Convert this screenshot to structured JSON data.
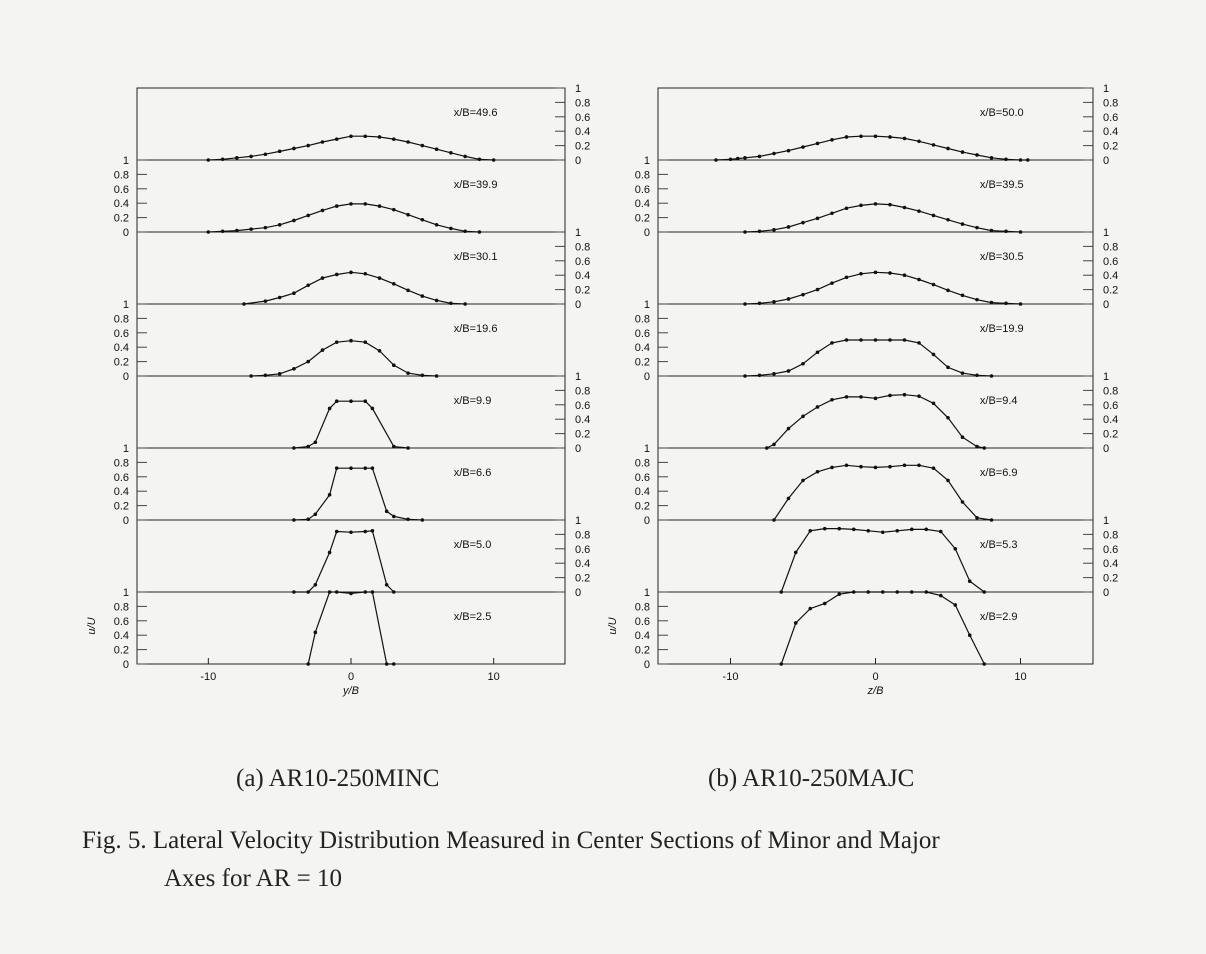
{
  "figure": {
    "caption_line1": "Fig. 5. Lateral Velocity Distribution Measured in Center Sections of Minor and Major",
    "caption_line2": "Axes for AR = 10",
    "colors": {
      "background": "#f4f4f2",
      "line": "#111111",
      "text": "#222222"
    }
  },
  "chart_data": [
    {
      "type": "line",
      "title": "(a) AR10-250MINC",
      "xlabel": "y/B",
      "ylabel": "u/U",
      "xlim": [
        -15,
        15
      ],
      "xticks": [
        -10,
        0,
        10
      ],
      "ylim": [
        0,
        1
      ],
      "yticks": [
        "0",
        "0.2",
        "0.4",
        "0.6",
        "0.8",
        "1"
      ],
      "grid": false,
      "series": [
        {
          "name": "x/B=49.6",
          "x": [
            -10,
            -9,
            -8,
            -7,
            -6,
            -5,
            -4,
            -3,
            -2,
            -1,
            0,
            1,
            2,
            3,
            4,
            5,
            6,
            7,
            8,
            9,
            10
          ],
          "y": [
            0.0,
            0.01,
            0.03,
            0.05,
            0.08,
            0.12,
            0.16,
            0.2,
            0.25,
            0.29,
            0.33,
            0.33,
            0.32,
            0.29,
            0.25,
            0.2,
            0.15,
            0.1,
            0.05,
            0.01,
            0.0
          ]
        },
        {
          "name": "x/B=39.9",
          "x": [
            -10,
            -9,
            -8,
            -7,
            -6,
            -5,
            -4,
            -3,
            -2,
            -1,
            0,
            1,
            2,
            3,
            4,
            5,
            6,
            7,
            8,
            9
          ],
          "y": [
            0.0,
            0.01,
            0.02,
            0.04,
            0.06,
            0.1,
            0.16,
            0.23,
            0.3,
            0.36,
            0.39,
            0.39,
            0.36,
            0.31,
            0.24,
            0.17,
            0.1,
            0.05,
            0.01,
            0.0
          ]
        },
        {
          "name": "x/B=30.1",
          "x": [
            -7.5,
            -6,
            -5,
            -4,
            -3,
            -2,
            -1,
            0,
            1,
            2,
            3,
            4,
            5,
            6,
            7,
            8
          ],
          "y": [
            0.0,
            0.04,
            0.09,
            0.15,
            0.26,
            0.36,
            0.41,
            0.44,
            0.42,
            0.36,
            0.28,
            0.19,
            0.11,
            0.05,
            0.01,
            0.0
          ]
        },
        {
          "name": "x/B=19.6",
          "x": [
            -7,
            -6,
            -5,
            -4,
            -3,
            -2,
            -1,
            0,
            1,
            2,
            3,
            4,
            5,
            6
          ],
          "y": [
            0.0,
            0.01,
            0.03,
            0.1,
            0.2,
            0.36,
            0.47,
            0.49,
            0.47,
            0.35,
            0.15,
            0.04,
            0.01,
            0.0
          ]
        },
        {
          "name": "x/B=9.9",
          "x": [
            -4,
            -3,
            -2.5,
            -1.5,
            -1,
            0,
            1,
            1.5,
            3,
            4
          ],
          "y": [
            0.0,
            0.02,
            0.08,
            0.55,
            0.65,
            0.65,
            0.65,
            0.55,
            0.02,
            0.0
          ]
        },
        {
          "name": "x/B=6.6",
          "x": [
            -4,
            -3,
            -2.5,
            -1.5,
            -1,
            0,
            1,
            1.5,
            2.5,
            3,
            4,
            5
          ],
          "y": [
            0.0,
            0.01,
            0.08,
            0.35,
            0.72,
            0.72,
            0.72,
            0.72,
            0.12,
            0.05,
            0.01,
            0.0
          ]
        },
        {
          "name": "x/B=5.0",
          "x": [
            -4,
            -3,
            -2.5,
            -1.5,
            -1,
            0,
            1,
            1.5,
            2.5,
            3
          ],
          "y": [
            0.0,
            0.0,
            0.1,
            0.55,
            0.84,
            0.83,
            0.84,
            0.85,
            0.1,
            0.0
          ]
        },
        {
          "name": "x/B=2.5",
          "x": [
            -3,
            -2.5,
            -1.5,
            -1,
            0,
            1,
            1.5,
            2.5,
            3
          ],
          "y": [
            0.0,
            0.44,
            1.0,
            1.0,
            0.98,
            1.0,
            1.0,
            0.0,
            0.0
          ]
        }
      ]
    },
    {
      "type": "line",
      "title": "(b) AR10-250MAJC",
      "xlabel": "z/B",
      "ylabel": "u/U",
      "xlim": [
        -15,
        15
      ],
      "xticks": [
        -10,
        0,
        10
      ],
      "ylim": [
        0,
        1
      ],
      "yticks": [
        "0",
        "0.2",
        "0.4",
        "0.6",
        "0.8",
        "1"
      ],
      "grid": false,
      "series": [
        {
          "name": "x/B=50.0",
          "x": [
            -11,
            -10,
            -9.5,
            -9,
            -8,
            -7,
            -6,
            -5,
            -4,
            -3,
            -2,
            -1,
            0,
            1,
            2,
            3,
            4,
            5,
            6,
            7,
            8,
            9,
            10,
            10.5
          ],
          "y": [
            0.0,
            0.01,
            0.02,
            0.03,
            0.05,
            0.09,
            0.13,
            0.18,
            0.23,
            0.28,
            0.32,
            0.33,
            0.33,
            0.32,
            0.3,
            0.26,
            0.21,
            0.16,
            0.11,
            0.07,
            0.03,
            0.01,
            0.0,
            0.0
          ]
        },
        {
          "name": "x/B=39.5",
          "x": [
            -9,
            -8,
            -7,
            -6,
            -5,
            -4,
            -3,
            -2,
            -1,
            0,
            1,
            2,
            3,
            4,
            5,
            6,
            7,
            8,
            9,
            10
          ],
          "y": [
            0.0,
            0.01,
            0.03,
            0.07,
            0.13,
            0.19,
            0.26,
            0.33,
            0.37,
            0.39,
            0.38,
            0.34,
            0.29,
            0.23,
            0.17,
            0.11,
            0.06,
            0.02,
            0.01,
            0.0
          ]
        },
        {
          "name": "x/B=30.5",
          "x": [
            -9,
            -8,
            -7,
            -6,
            -5,
            -4,
            -3,
            -2,
            -1,
            0,
            1,
            2,
            3,
            4,
            5,
            6,
            7,
            8,
            9,
            10
          ],
          "y": [
            0.0,
            0.01,
            0.03,
            0.07,
            0.13,
            0.2,
            0.29,
            0.37,
            0.42,
            0.44,
            0.43,
            0.4,
            0.34,
            0.27,
            0.19,
            0.12,
            0.06,
            0.02,
            0.01,
            0.0
          ]
        },
        {
          "name": "x/B=19.9",
          "x": [
            -9,
            -8,
            -7,
            -6,
            -5,
            -4,
            -3,
            -2,
            -1,
            0,
            1,
            2,
            3,
            4,
            5,
            6,
            7,
            8
          ],
          "y": [
            0.0,
            0.01,
            0.03,
            0.07,
            0.17,
            0.33,
            0.46,
            0.5,
            0.5,
            0.5,
            0.5,
            0.5,
            0.46,
            0.3,
            0.12,
            0.04,
            0.01,
            0.0
          ]
        },
        {
          "name": "x/B=9.4",
          "x": [
            -7.5,
            -7,
            -6,
            -5,
            -4,
            -3,
            -2,
            -1,
            0,
            1,
            2,
            3,
            4,
            5,
            6,
            7,
            7.5
          ],
          "y": [
            0.0,
            0.05,
            0.27,
            0.44,
            0.57,
            0.67,
            0.71,
            0.71,
            0.69,
            0.73,
            0.74,
            0.72,
            0.62,
            0.42,
            0.15,
            0.02,
            0.0
          ]
        },
        {
          "name": "x/B=6.9",
          "x": [
            -7,
            -6,
            -5,
            -4,
            -3,
            -2,
            -1,
            0,
            1,
            2,
            3,
            4,
            5,
            6,
            7,
            8
          ],
          "y": [
            0.0,
            0.3,
            0.55,
            0.67,
            0.73,
            0.76,
            0.74,
            0.73,
            0.74,
            0.76,
            0.76,
            0.72,
            0.55,
            0.25,
            0.03,
            0.0
          ]
        },
        {
          "name": "x/B=5.3",
          "x": [
            -6.5,
            -5.5,
            -4.5,
            -3.5,
            -2.5,
            -1.5,
            -0.5,
            0.5,
            1.5,
            2.5,
            3.5,
            4.5,
            5.5,
            6.5,
            7.5
          ],
          "y": [
            0.0,
            0.55,
            0.85,
            0.88,
            0.88,
            0.87,
            0.85,
            0.83,
            0.85,
            0.87,
            0.87,
            0.84,
            0.6,
            0.15,
            0.0
          ]
        },
        {
          "name": "x/B=2.9",
          "x": [
            -6.5,
            -5.5,
            -4.5,
            -3.5,
            -2.5,
            -1.5,
            -0.5,
            0.5,
            1.5,
            2.5,
            3.5,
            4.5,
            5.5,
            6.5,
            7.5
          ],
          "y": [
            0.0,
            0.57,
            0.77,
            0.84,
            0.97,
            1.0,
            1.0,
            1.0,
            1.0,
            1.0,
            1.0,
            0.95,
            0.82,
            0.4,
            0.0
          ]
        }
      ]
    }
  ]
}
